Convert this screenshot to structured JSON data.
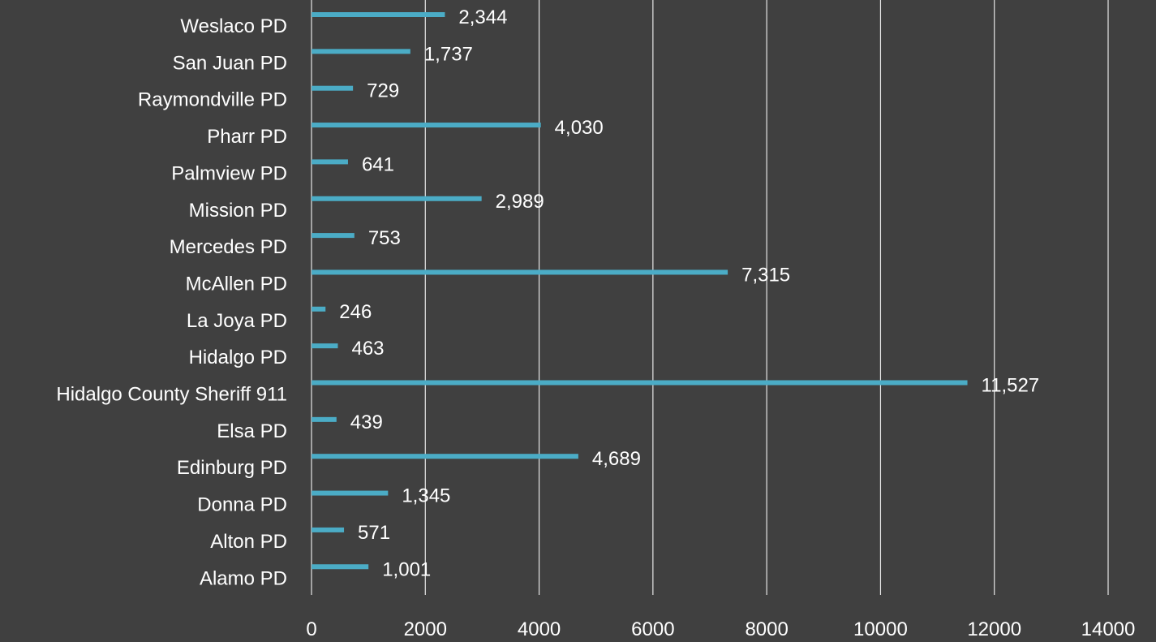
{
  "colors": {
    "background": "#404040",
    "bar": "#4BACC6",
    "grid": "#E6E6E6",
    "text": "#FFFFFF"
  },
  "chart_data": {
    "type": "bar",
    "orientation": "horizontal",
    "title": "",
    "xlabel": "",
    "ylabel": "",
    "categories": [
      "Weslaco PD",
      "San Juan PD",
      "Raymondville PD",
      "Pharr PD",
      "Palmview PD",
      "Mission PD",
      "Mercedes PD",
      "McAllen PD",
      "La Joya PD",
      "Hidalgo PD",
      "Hidalgo County Sheriff 911",
      "Elsa PD",
      "Edinburg PD",
      "Donna PD",
      "Alton PD",
      "Alamo PD"
    ],
    "values": [
      2344,
      1737,
      729,
      4030,
      641,
      2989,
      753,
      7315,
      246,
      463,
      11527,
      439,
      4689,
      1345,
      571,
      1001
    ],
    "value_labels": [
      "2,344",
      "1,737",
      "729",
      "4,030",
      "641",
      "2,989",
      "753",
      "7,315",
      "246",
      "463",
      "11,527",
      "439",
      "4,689",
      "1,345",
      "571",
      "1,001"
    ],
    "xlim": [
      0,
      14000
    ],
    "xticks": [
      0,
      2000,
      4000,
      6000,
      8000,
      10000,
      12000,
      14000
    ],
    "xtick_labels": [
      "0",
      "2000",
      "4000",
      "6000",
      "8000",
      "10000",
      "12000",
      "14000"
    ],
    "grid": "vertical",
    "legend": "none"
  }
}
